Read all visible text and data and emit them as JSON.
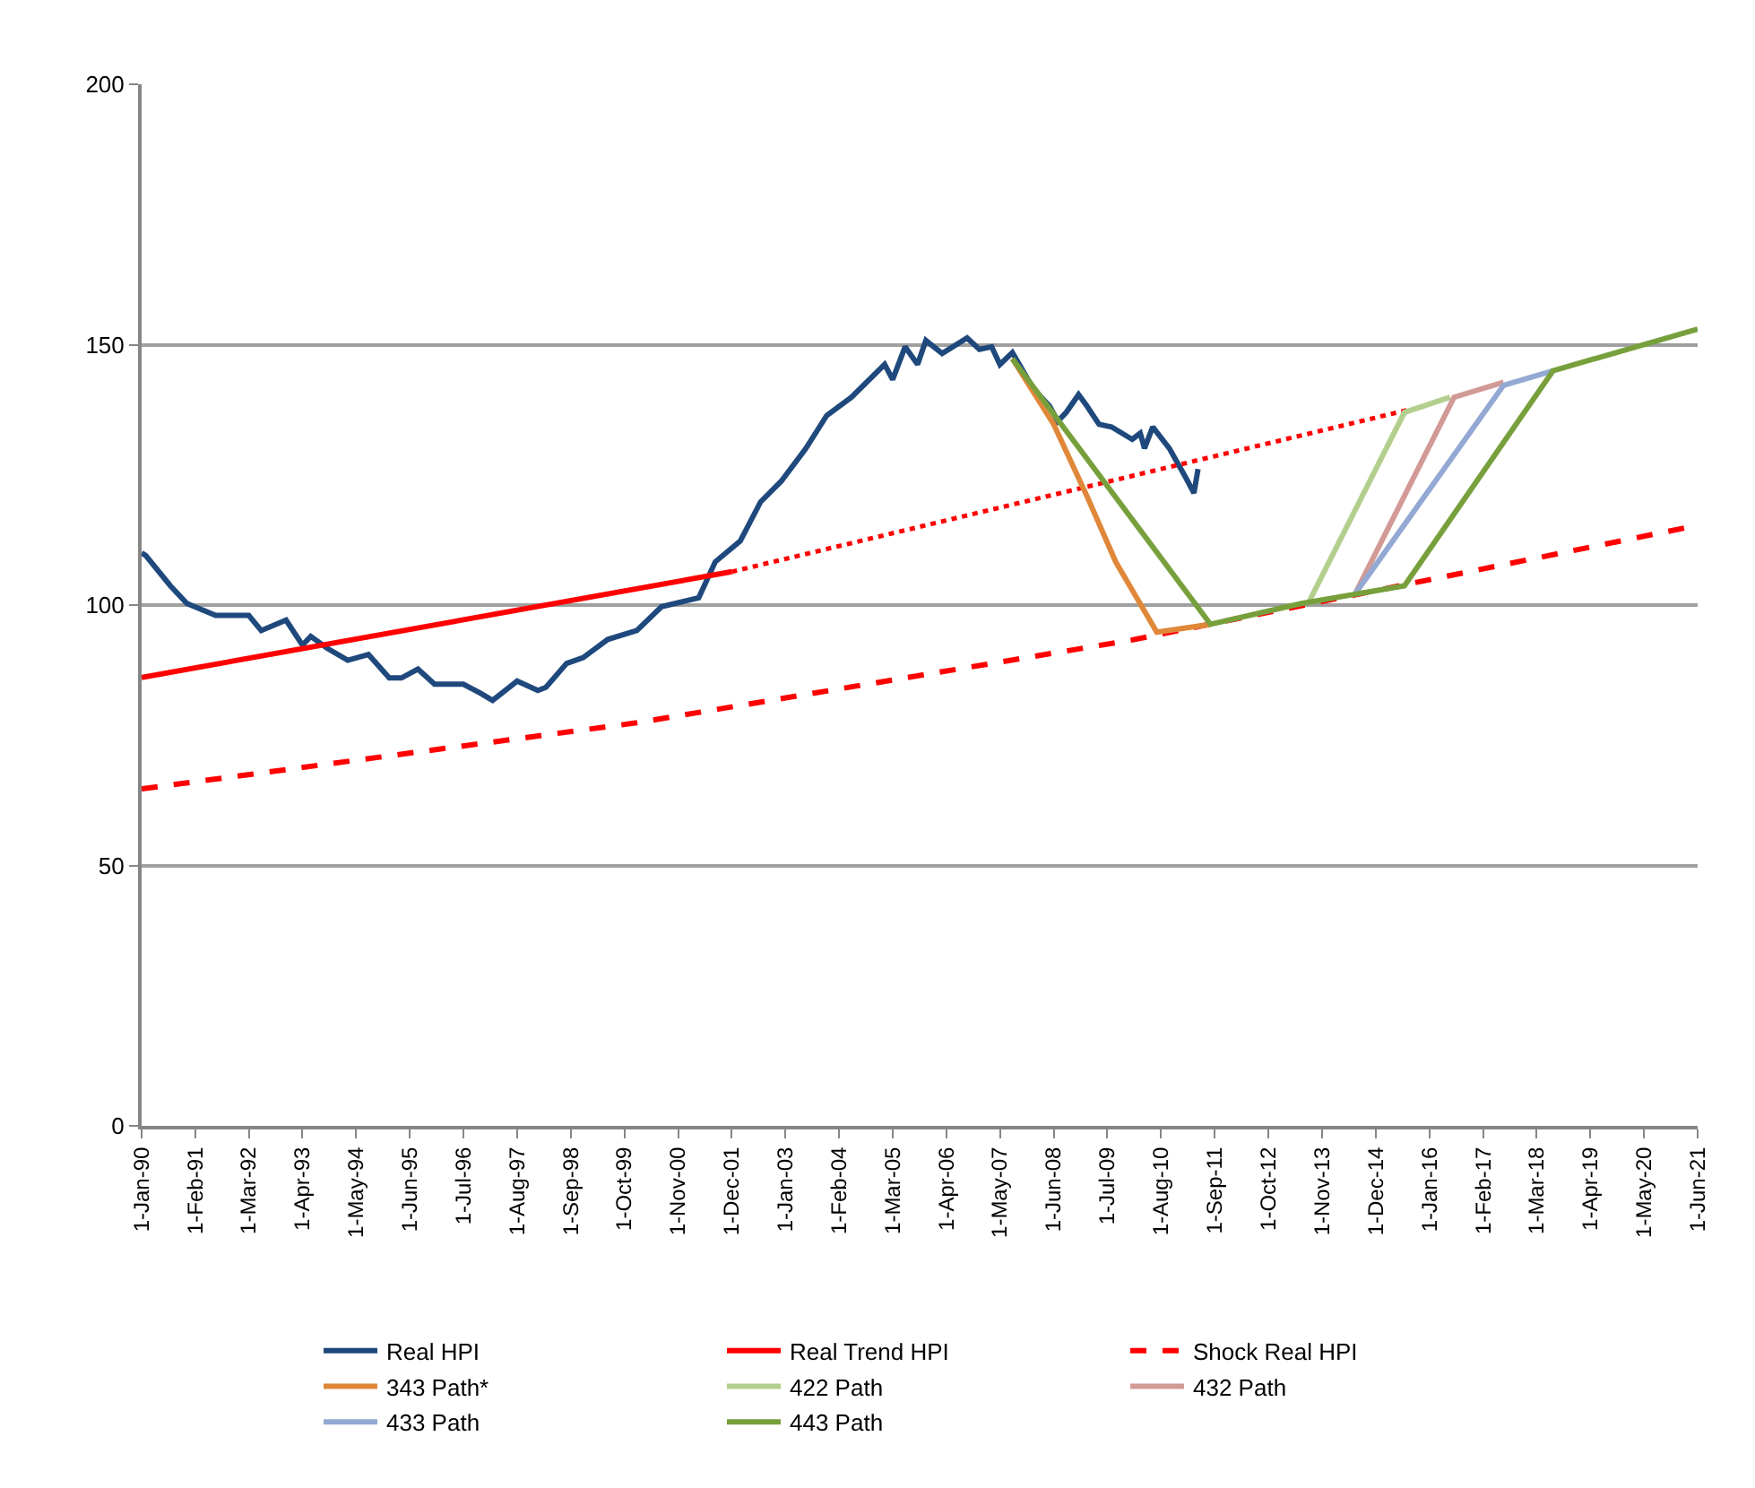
{
  "chart_data": {
    "type": "line",
    "xlim": [
      "1990-01-01",
      "2021-06-01"
    ],
    "xticks": [
      {
        "value": "1990-01-01",
        "label": "1-Jan-90"
      },
      {
        "value": "1991-02-01",
        "label": "1-Feb-91"
      },
      {
        "value": "1992-03-01",
        "label": "1-Mar-92"
      },
      {
        "value": "1993-04-01",
        "label": "1-Apr-93"
      },
      {
        "value": "1994-05-01",
        "label": "1-May-94"
      },
      {
        "value": "1995-06-01",
        "label": "1-Jun-95"
      },
      {
        "value": "1996-07-01",
        "label": "1-Jul-96"
      },
      {
        "value": "1997-08-01",
        "label": "1-Aug-97"
      },
      {
        "value": "1998-09-01",
        "label": "1-Sep-98"
      },
      {
        "value": "1999-10-01",
        "label": "1-Oct-99"
      },
      {
        "value": "2000-11-01",
        "label": "1-Nov-00"
      },
      {
        "value": "2001-12-01",
        "label": "1-Dec-01"
      },
      {
        "value": "2003-01-01",
        "label": "1-Jan-03"
      },
      {
        "value": "2004-02-01",
        "label": "1-Feb-04"
      },
      {
        "value": "2005-03-01",
        "label": "1-Mar-05"
      },
      {
        "value": "2006-04-01",
        "label": "1-Apr-06"
      },
      {
        "value": "2007-05-01",
        "label": "1-May-07"
      },
      {
        "value": "2008-06-01",
        "label": "1-Jun-08"
      },
      {
        "value": "2009-07-01",
        "label": "1-Jul-09"
      },
      {
        "value": "2010-08-01",
        "label": "1-Aug-10"
      },
      {
        "value": "2011-09-01",
        "label": "1-Sep-11"
      },
      {
        "value": "2012-10-01",
        "label": "1-Oct-12"
      },
      {
        "value": "2013-11-01",
        "label": "1-Nov-13"
      },
      {
        "value": "2014-12-01",
        "label": "1-Dec-14"
      },
      {
        "value": "2016-01-01",
        "label": "1-Jan-16"
      },
      {
        "value": "2017-02-01",
        "label": "1-Feb-17"
      },
      {
        "value": "2018-03-01",
        "label": "1-Mar-18"
      },
      {
        "value": "2019-04-01",
        "label": "1-Apr-19"
      },
      {
        "value": "2020-05-01",
        "label": "1-May-20"
      },
      {
        "value": "2021-06-01",
        "label": "1-Jun-21"
      }
    ],
    "ylim": [
      0,
      200
    ],
    "yticks": [
      0,
      50,
      100,
      150,
      200
    ],
    "grid": "y",
    "legend": "bottom",
    "marker": "none",
    "series": [
      {
        "name": "Real HPI",
        "color": "#1f497d",
        "x": [
          "1990-01",
          "1990-02",
          "1990-08",
          "1990-12",
          "1991-07",
          "1992-03",
          "1992-06",
          "1992-12",
          "1993-04",
          "1993-06",
          "1993-10",
          "1994-03",
          "1994-08",
          "1995-01",
          "1995-04",
          "1995-08",
          "1995-12",
          "1996-07",
          "1996-11",
          "1997-02",
          "1997-08",
          "1998-01",
          "1998-03",
          "1998-08",
          "1998-12",
          "1999-06",
          "2000-01",
          "2000-07",
          "2001-04",
          "2001-08",
          "2002-02",
          "2002-07",
          "2002-12",
          "2003-06",
          "2003-11",
          "2004-05",
          "2005-01",
          "2005-03",
          "2005-06",
          "2005-09",
          "2005-11",
          "2006-03",
          "2006-09",
          "2006-12",
          "2007-03",
          "2007-05",
          "2007-08",
          "2008-01",
          "2008-05",
          "2008-07",
          "2008-09",
          "2008-12",
          "2009-02",
          "2009-05",
          "2009-08",
          "2010-01",
          "2010-03",
          "2010-04",
          "2010-06",
          "2010-10",
          "2011-02",
          "2011-04",
          "2011-05"
        ],
        "values": [
          110,
          109.5,
          103.7,
          100.3,
          98.0,
          98.0,
          95.1,
          97.1,
          92.3,
          94.0,
          91.7,
          89.4,
          90.5,
          86.0,
          86.0,
          87.7,
          84.8,
          84.8,
          83.1,
          81.7,
          85.4,
          83.6,
          84.2,
          88.8,
          89.9,
          93.4,
          95.1,
          99.7,
          101.4,
          108.3,
          112.3,
          119.8,
          123.8,
          130.1,
          136.4,
          139.9,
          146.2,
          143.3,
          149.6,
          146.2,
          150.8,
          148.3,
          151.3,
          149.1,
          149.6,
          146.2,
          148.5,
          141.6,
          138.2,
          135.3,
          137.0,
          140.4,
          138.2,
          134.7,
          134.2,
          131.8,
          133.0,
          130.1,
          134.2,
          130.1,
          124.4,
          121.5,
          126.1
        ]
      },
      {
        "name": "Real Trend HPI",
        "color": "#ff0000",
        "x": [
          "1990-01",
          "2001-12"
        ],
        "values": [
          86.1,
          106.4
        ]
      },
      {
        "color": "#ff0000",
        "line_style": "dotted",
        "x": [
          "2001-12",
          "2015-08"
        ],
        "values": [
          106.4,
          137.5
        ]
      },
      {
        "name": "Shock Real HPI",
        "color": "#ff0000",
        "line_style": "dashed",
        "x": [
          "1990-01",
          "2000-01",
          "2010-01",
          "2021-06"
        ],
        "values": [
          64.7,
          77.4,
          93.3,
          115.3
        ]
      },
      {
        "name": "343 Path*",
        "color": "#e0883a",
        "x": [
          "2007-08",
          "2008-06",
          "2009-02",
          "2009-09",
          "2010-07",
          "2011-08"
        ],
        "values": [
          147.3,
          134.7,
          120.9,
          108.3,
          94.8,
          96.3
        ]
      },
      {
        "name": "422 Path",
        "color": "#b3cf8e",
        "x": [
          "2013-08",
          "2015-07",
          "2016-06"
        ],
        "values": [
          100.9,
          137.0,
          139.9
        ]
      },
      {
        "name": "432 Path",
        "color": "#d29a96",
        "x": [
          "2014-07",
          "2016-07",
          "2017-07"
        ],
        "values": [
          102.1,
          139.9,
          142.8
        ]
      },
      {
        "name": "433 Path",
        "color": "#93a9d3",
        "x": [
          "2014-07",
          "2017-07",
          "2018-07"
        ],
        "values": [
          102.1,
          142.2,
          145.0
        ]
      },
      {
        "name": "443 Path",
        "color": "#77a03c",
        "x": [
          "2007-08",
          "2011-08",
          "2013-06",
          "2015-07",
          "2018-07",
          "2021-06"
        ],
        "values": [
          147.3,
          96.3,
          100.3,
          103.7,
          145.0,
          153.0
        ]
      }
    ]
  }
}
